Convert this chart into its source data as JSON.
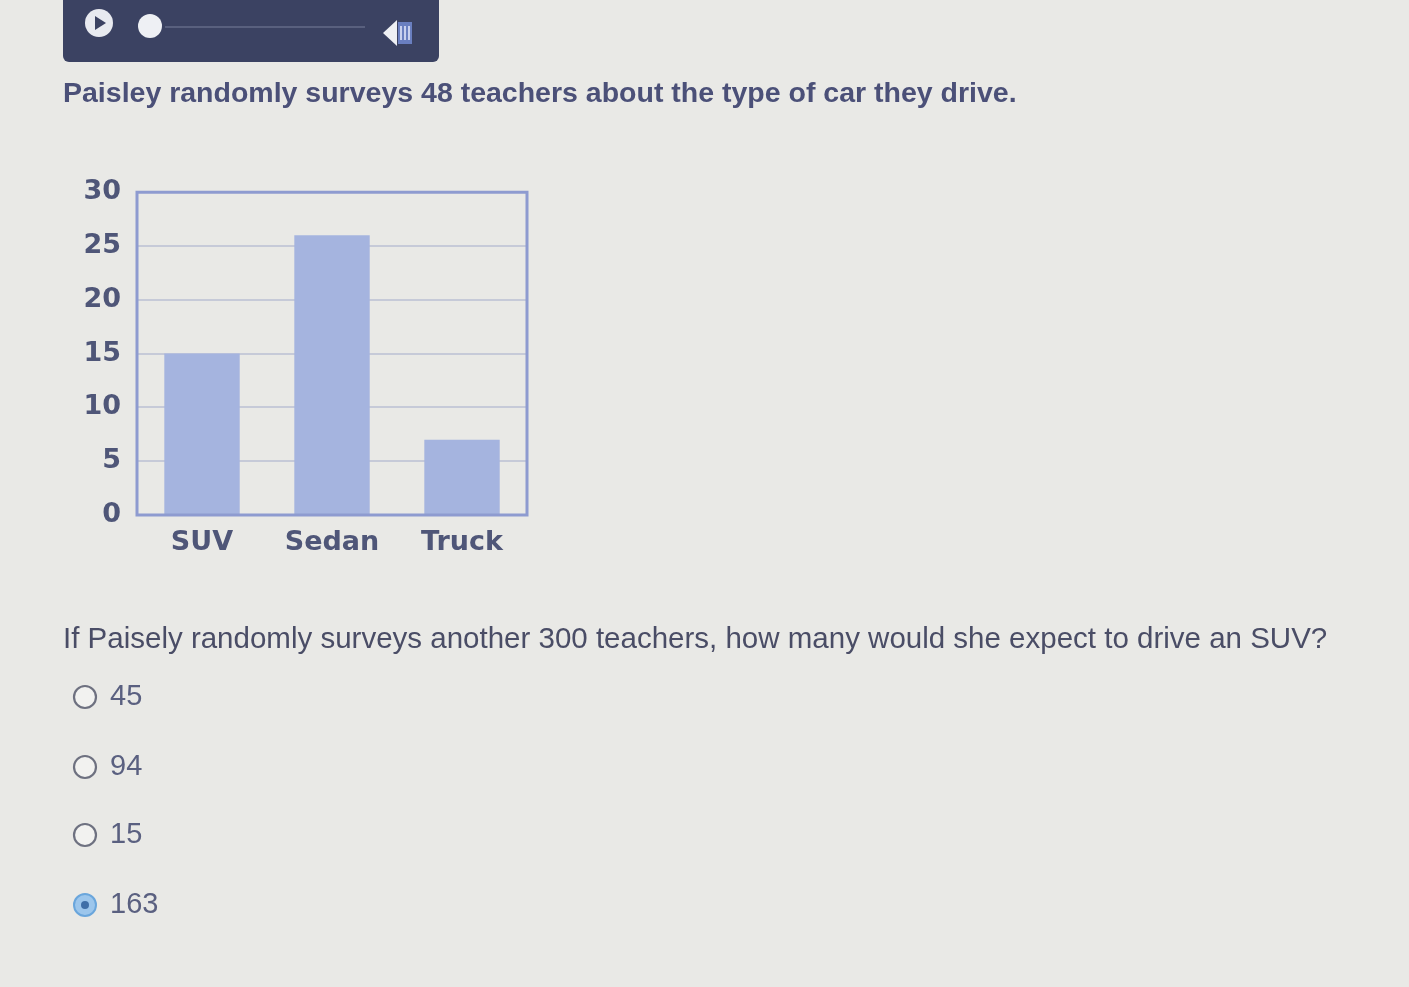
{
  "chart_data": {
    "type": "bar",
    "title": "Paisley randomly surveys 48 teachers about the type of car they drive.",
    "categories": [
      "SUV",
      "Sedan",
      "Truck"
    ],
    "values": [
      15,
      26,
      7
    ],
    "color": "#a5b4df",
    "ylim": [
      0,
      30
    ],
    "yticks": [
      0,
      5,
      10,
      15,
      20,
      25,
      30
    ],
    "grid": "y",
    "annotations": [
      "If Paisely randomly surveys another 300 teachers, how many would she expect to drive an SUV?",
      "45",
      "94",
      "15",
      "163"
    ]
  }
}
